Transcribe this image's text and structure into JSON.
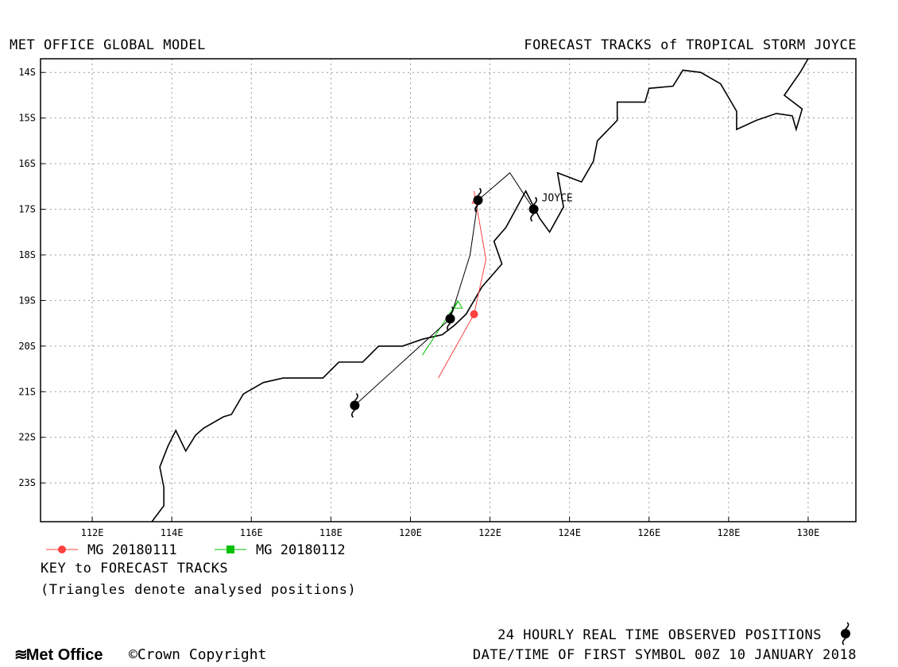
{
  "header": {
    "left_title": "MET OFFICE GLOBAL MODEL",
    "right_title": "FORECAST TRACKS of TROPICAL STORM JOYCE"
  },
  "map": {
    "lon_range": [
      110.7,
      131.2
    ],
    "lat_range": [
      -23.85,
      -13.7
    ],
    "x_ticks": [
      "112E",
      "114E",
      "116E",
      "118E",
      "120E",
      "122E",
      "124E",
      "126E",
      "128E",
      "130E"
    ],
    "y_ticks": [
      "14S",
      "15S",
      "16S",
      "17S",
      "18S",
      "19S",
      "20S",
      "21S",
      "22S",
      "23S"
    ],
    "storm_label": "JOYCE",
    "colors": {
      "observed": "#000000",
      "mg_20180111": "#ff4040",
      "mg_20180112": "#00c000",
      "grid": "#9a9a9a",
      "coast": "#000000"
    },
    "coastline": [
      [
        113.5,
        -23.85
      ],
      [
        113.8,
        -23.5
      ],
      [
        113.8,
        -23.1
      ],
      [
        113.7,
        -22.65
      ],
      [
        113.9,
        -22.2
      ],
      [
        114.1,
        -21.85
      ],
      [
        114.35,
        -22.3
      ],
      [
        114.6,
        -21.95
      ],
      [
        114.8,
        -21.8
      ],
      [
        115.3,
        -21.55
      ],
      [
        115.5,
        -21.5
      ],
      [
        115.8,
        -21.05
      ],
      [
        116.3,
        -20.8
      ],
      [
        116.8,
        -20.7
      ],
      [
        117.8,
        -20.7
      ],
      [
        118.2,
        -20.35
      ],
      [
        118.8,
        -20.35
      ],
      [
        119.2,
        -20.0
      ],
      [
        119.8,
        -20.0
      ],
      [
        120.3,
        -19.85
      ],
      [
        120.8,
        -19.75
      ],
      [
        121.1,
        -19.55
      ],
      [
        121.4,
        -19.3
      ],
      [
        121.8,
        -18.7
      ],
      [
        122.3,
        -18.2
      ],
      [
        122.1,
        -17.7
      ],
      [
        122.4,
        -17.4
      ],
      [
        122.9,
        -16.6
      ],
      [
        123.25,
        -17.2
      ],
      [
        123.5,
        -17.5
      ],
      [
        123.85,
        -16.95
      ],
      [
        123.7,
        -16.2
      ],
      [
        124.3,
        -16.4
      ],
      [
        124.6,
        -15.95
      ],
      [
        124.7,
        -15.5
      ],
      [
        125.2,
        -15.05
      ],
      [
        125.2,
        -14.65
      ],
      [
        125.9,
        -14.65
      ],
      [
        126.0,
        -14.35
      ],
      [
        126.6,
        -14.3
      ],
      [
        126.85,
        -13.95
      ],
      [
        127.3,
        -14.0
      ],
      [
        127.8,
        -14.25
      ],
      [
        128.2,
        -14.85
      ],
      [
        128.2,
        -15.25
      ],
      [
        128.7,
        -15.05
      ],
      [
        129.2,
        -14.9
      ],
      [
        129.6,
        -14.95
      ],
      [
        129.7,
        -15.25
      ],
      [
        129.85,
        -14.8
      ],
      [
        129.4,
        -14.5
      ],
      [
        129.8,
        -14.0
      ],
      [
        130.0,
        -13.7
      ]
    ],
    "observed_track": {
      "points": [
        [
          123.1,
          -17.0
        ],
        [
          122.5,
          -16.2
        ],
        [
          121.7,
          -16.8
        ],
        [
          121.5,
          -18.0
        ],
        [
          121.0,
          -19.4
        ],
        [
          118.6,
          -21.3
        ]
      ],
      "symbols": [
        [
          123.1,
          -17.0
        ],
        [
          121.7,
          -16.8
        ],
        [
          121.0,
          -19.4
        ],
        [
          118.6,
          -21.3
        ]
      ]
    },
    "forecasts": [
      {
        "legend": "MG 20180111",
        "points": [
          [
            121.6,
            -16.6
          ],
          [
            121.9,
            -18.1
          ],
          [
            121.6,
            -19.3
          ],
          [
            120.7,
            -20.7
          ]
        ],
        "analysed": [
          121.65,
          -16.8
        ],
        "marker": [
          121.6,
          -19.3
        ]
      },
      {
        "legend": "MG 20180112",
        "points": [
          [
            121.2,
            -19.0
          ],
          [
            120.9,
            -19.4
          ],
          [
            120.3,
            -20.2
          ]
        ],
        "analysed": [
          121.2,
          -19.1
        ]
      }
    ]
  },
  "key": {
    "title": "KEY to FORECAST TRACKS",
    "note": "(Triangles denote analysed positions)"
  },
  "footer": {
    "logo_text": "Met Office",
    "copyright": "©Crown Copyright",
    "observed_note": "24 HOURLY REAL TIME OBSERVED POSITIONS",
    "datetime_note": "DATE/TIME OF FIRST SYMBOL 00Z 10 JANUARY 2018"
  }
}
